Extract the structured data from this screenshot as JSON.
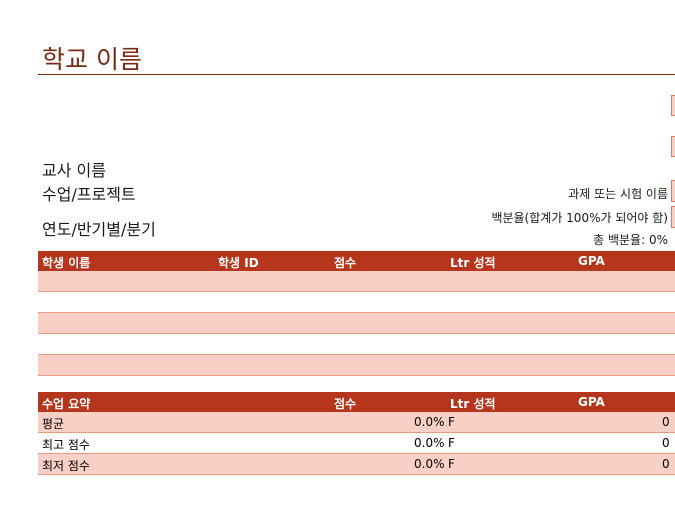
{
  "header": {
    "school_name": "학교 이름"
  },
  "info": {
    "teacher_name": "교사 이름",
    "class_project": "수업/프로젝트",
    "year_semester": "연도/반기별/분기"
  },
  "assignment": {
    "assignment_label": "과제 또는 시험 이름",
    "percentage_label": "백분율(합계가 100%가 되어야 함)",
    "total_percentage": "총 백분율: 0%"
  },
  "students_table": {
    "columns": [
      "학생 이름",
      "학생 ID",
      "점수",
      "Ltr 성적",
      "GPA"
    ],
    "rows": [
      "",
      "",
      "",
      "",
      ""
    ]
  },
  "summary_table": {
    "columns": [
      "수업 요약",
      "점수",
      "Ltr 성적",
      "GPA"
    ],
    "rows": [
      {
        "label": "평균",
        "score": "0.0%",
        "letter": "F",
        "gpa": "0"
      },
      {
        "label": "최고 점수",
        "score": "0.0%",
        "letter": "F",
        "gpa": "0"
      },
      {
        "label": "최저 점수",
        "score": "0.0%",
        "letter": "F",
        "gpa": "0"
      }
    ]
  },
  "colors": {
    "accent_dark": "#7a2a16",
    "header_bg": "#b5361c",
    "row_pink": "#f9d0c6"
  }
}
